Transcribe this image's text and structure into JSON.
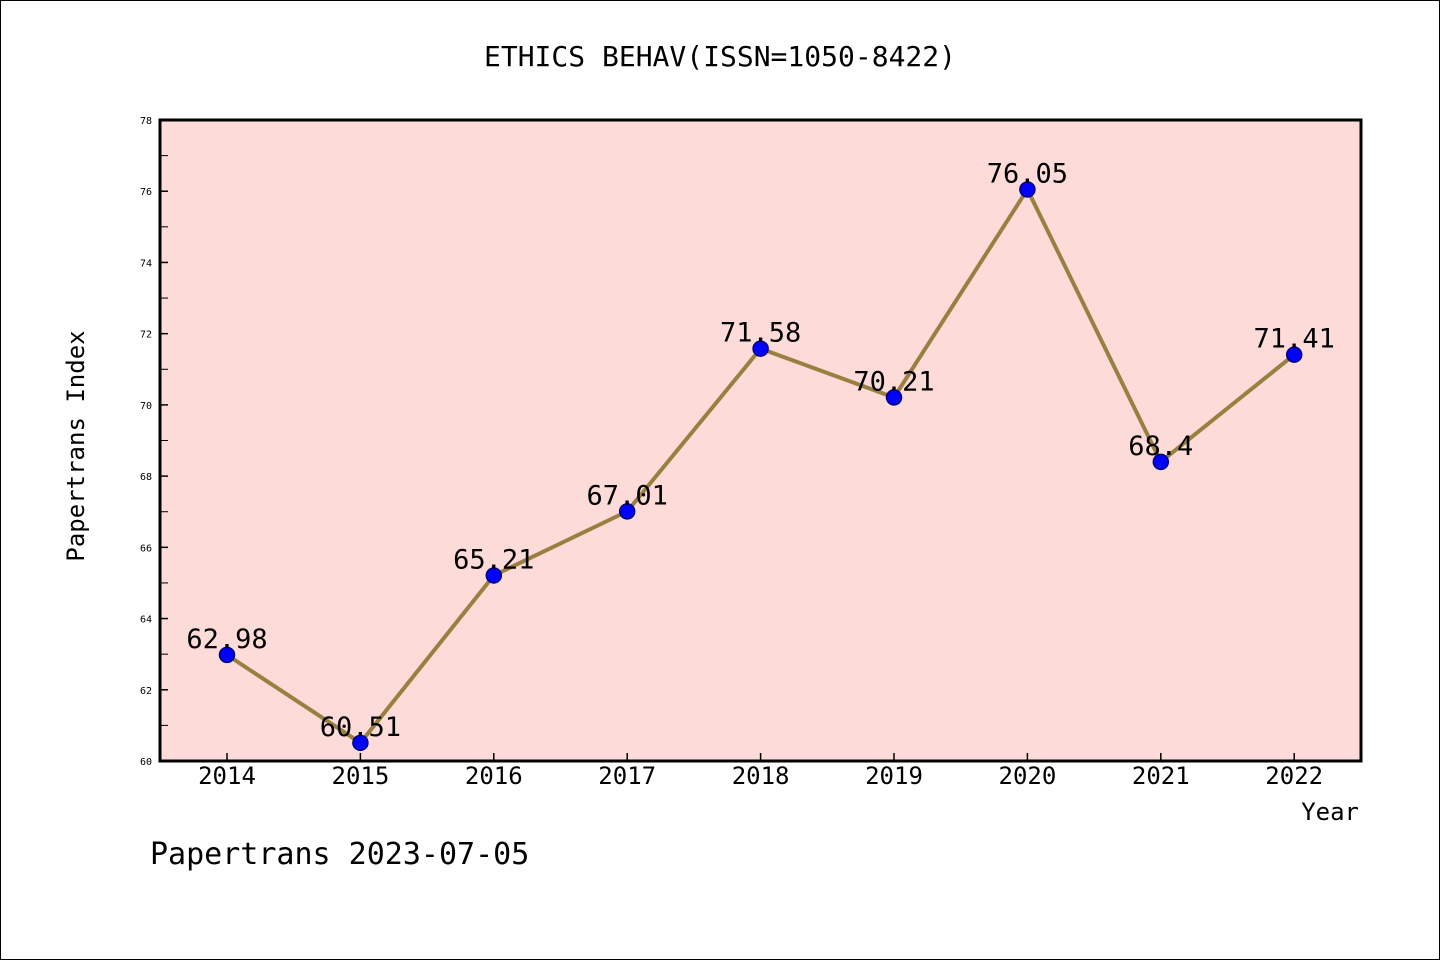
{
  "chart_data": {
    "type": "line",
    "title": "ETHICS BEHAV(ISSN=1050-8422)",
    "xlabel": "Year",
    "ylabel": "Papertrans Index",
    "footer": "Papertrans 2023-07-05",
    "categories": [
      "2014",
      "2015",
      "2016",
      "2017",
      "2018",
      "2019",
      "2020",
      "2021",
      "2022"
    ],
    "values": [
      62.98,
      60.51,
      65.21,
      67.01,
      71.58,
      70.21,
      76.05,
      68.4,
      71.41
    ],
    "data_labels": [
      "62.98",
      "60.51",
      "65.21",
      "67.01",
      "71.58",
      "70.21",
      "76.05",
      "68.4",
      "71.41"
    ],
    "ylim": [
      60,
      78
    ],
    "yticks": [
      "60",
      "62",
      "64",
      "66",
      "68",
      "70",
      "72",
      "74",
      "76",
      "78"
    ],
    "grid": false,
    "colors": {
      "plot_background": "#fddbd8",
      "line": "#9a8040",
      "marker": "#0000ff",
      "marker_edge": "#00007a"
    }
  }
}
